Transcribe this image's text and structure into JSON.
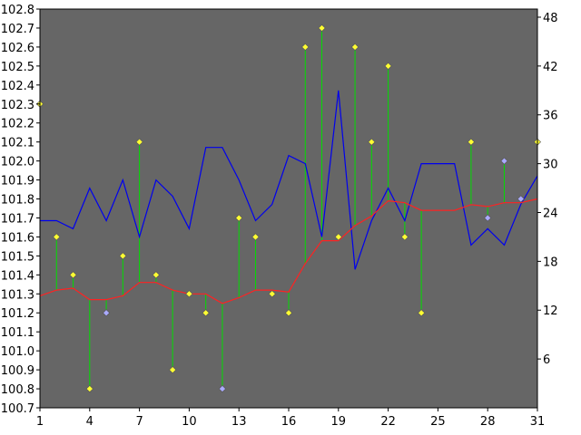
{
  "chart_data": {
    "type": "line",
    "title": "",
    "xlabel": "",
    "ylabel": "",
    "x": [
      1,
      2,
      3,
      4,
      5,
      6,
      7,
      8,
      9,
      10,
      11,
      12,
      13,
      14,
      15,
      16,
      17,
      18,
      19,
      20,
      21,
      22,
      23,
      24,
      25,
      26,
      27,
      28,
      29,
      30,
      31
    ],
    "xlim": [
      1,
      31
    ],
    "x_ticks": [
      "1",
      "4",
      "7",
      "10",
      "13",
      "16",
      "19",
      "22",
      "25",
      "28",
      "31"
    ],
    "y_left": {
      "ylim": [
        100.7,
        102.8
      ],
      "ticks": [
        "100.7",
        "100.8",
        "100.9",
        "101.0",
        "101.1",
        "101.2",
        "101.3",
        "101.4",
        "101.5",
        "101.6",
        "101.7",
        "101.8",
        "101.9",
        "102.0",
        "102.1",
        "102.2",
        "102.3",
        "102.4",
        "102.5",
        "102.6",
        "102.7",
        "102.8"
      ]
    },
    "y_right": {
      "ylim": [
        0,
        49
      ],
      "ticks": [
        "6",
        "12",
        "18",
        "24",
        "30",
        "36",
        "42",
        "48"
      ]
    },
    "series": [
      {
        "axis": "left",
        "style": "stem-markers",
        "stem_color": "#00dd00",
        "values": [
          102.3,
          101.6,
          101.4,
          100.8,
          101.2,
          101.5,
          102.1,
          101.4,
          100.9,
          101.3,
          101.2,
          100.8,
          101.7,
          101.6,
          101.3,
          101.2,
          102.6,
          102.7,
          101.6,
          102.6,
          102.1,
          102.5,
          101.6,
          101.2,
          null,
          null,
          102.1,
          101.7,
          102.0,
          101.8,
          102.1
        ],
        "marker_colors": [
          "#ffff33",
          "#ffff33",
          "#ffff33",
          "#ffff33",
          "#aaaaff",
          "#ffff33",
          "#ffff33",
          "#ffff33",
          "#ffff33",
          "#ffff33",
          "#ffff33",
          "#aaaaff",
          "#ffff33",
          "#ffff33",
          "#ffff33",
          "#ffff33",
          "#ffff33",
          "#ffff33",
          "#ffff33",
          "#ffff33",
          "#ffff33",
          "#ffff33",
          "#ffff33",
          "#ffff33",
          "#ffff33",
          "#ffff33",
          "#ffff33",
          "#aaaaff",
          "#aaaaff",
          "#aaaaff",
          "#ffff33"
        ]
      },
      {
        "axis": "left",
        "style": "line",
        "color": "#ff2222",
        "values": [
          101.29,
          101.32,
          101.33,
          101.27,
          101.27,
          101.29,
          101.36,
          101.36,
          101.32,
          101.3,
          101.3,
          101.25,
          101.28,
          101.32,
          101.32,
          101.31,
          101.46,
          101.58,
          101.58,
          101.66,
          101.71,
          101.79,
          101.78,
          101.74,
          101.74,
          101.74,
          101.77,
          101.76,
          101.78,
          101.78,
          101.8
        ]
      },
      {
        "axis": "right",
        "style": "line",
        "color": "#0000ee",
        "values": [
          23,
          23,
          22,
          27,
          23,
          28,
          21,
          28,
          26,
          22,
          32,
          32,
          28,
          23,
          25,
          31,
          30,
          21,
          39,
          17,
          23,
          27,
          23,
          30,
          30,
          30,
          20,
          22,
          20,
          25,
          28.5
        ]
      }
    ]
  }
}
